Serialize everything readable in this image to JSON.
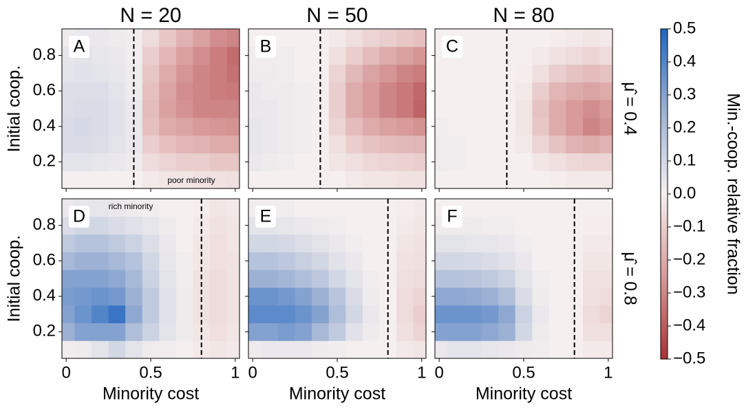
{
  "chart_data": [
    {
      "type": "heatmap",
      "title": "N = 20",
      "panel_label": "A",
      "ylabel": "Initial coop.",
      "annotation": "poor minority",
      "vline": 0.4,
      "x": [
        0,
        0.1,
        0.2,
        0.3,
        0.4,
        0.5,
        0.6,
        0.7,
        0.8,
        0.9,
        1
      ],
      "y": [
        0.1,
        0.2,
        0.3,
        0.4,
        0.5,
        0.6,
        0.7,
        0.8,
        0.9
      ],
      "xlim": [
        -0.025,
        1.025
      ],
      "ylim": [
        0.05,
        0.95
      ],
      "xticks": [
        0,
        0.5,
        1
      ],
      "yticks": [
        0.2,
        0.4,
        0.6,
        0.8
      ],
      "z": [
        [
          0,
          0,
          0,
          0,
          0,
          -0.02,
          -0.03,
          -0.03,
          -0.04,
          -0.04,
          -0.05
        ],
        [
          0.05,
          0.05,
          0.04,
          0.03,
          0.02,
          -0.06,
          -0.08,
          -0.1,
          -0.1,
          -0.12,
          -0.12
        ],
        [
          0.08,
          0.08,
          0.07,
          0.05,
          0.03,
          -0.1,
          -0.14,
          -0.17,
          -0.18,
          -0.2,
          -0.2
        ],
        [
          0.08,
          0.09,
          0.08,
          0.06,
          0.03,
          -0.14,
          -0.2,
          -0.22,
          -0.25,
          -0.26,
          -0.27
        ],
        [
          0.07,
          0.08,
          0.08,
          0.06,
          0.03,
          -0.15,
          -0.23,
          -0.27,
          -0.3,
          -0.3,
          -0.3
        ],
        [
          0.07,
          0.07,
          0.07,
          0.05,
          0.02,
          -0.14,
          -0.22,
          -0.28,
          -0.3,
          -0.32,
          -0.33
        ],
        [
          0.05,
          0.06,
          0.05,
          0.04,
          0.02,
          -0.12,
          -0.2,
          -0.26,
          -0.3,
          -0.32,
          -0.35
        ],
        [
          0.04,
          0.05,
          0.04,
          0.03,
          0.01,
          -0.1,
          -0.17,
          -0.23,
          -0.28,
          -0.32,
          -0.36
        ],
        [
          0.02,
          0.03,
          0.03,
          0.02,
          0.01,
          -0.06,
          -0.12,
          -0.18,
          -0.23,
          -0.28,
          -0.3
        ]
      ]
    },
    {
      "type": "heatmap",
      "title": "N = 50",
      "panel_label": "B",
      "vline": 0.4,
      "x": [
        0,
        0.1,
        0.2,
        0.3,
        0.4,
        0.5,
        0.6,
        0.7,
        0.8,
        0.9,
        1
      ],
      "y": [
        0.1,
        0.2,
        0.3,
        0.4,
        0.5,
        0.6,
        0.7,
        0.8,
        0.9
      ],
      "xlim": [
        -0.025,
        1.025
      ],
      "ylim": [
        0.05,
        0.95
      ],
      "xticks": [
        0,
        0.5,
        1
      ],
      "yticks": [
        0.2,
        0.4,
        0.6,
        0.8
      ],
      "z": [
        [
          0,
          0,
          0,
          0,
          0,
          0,
          -0.02,
          -0.03,
          -0.03,
          -0.04,
          -0.04
        ],
        [
          0.03,
          0.02,
          0.01,
          0,
          0,
          -0.03,
          -0.05,
          -0.07,
          -0.08,
          -0.09,
          -0.1
        ],
        [
          0.04,
          0.03,
          0.02,
          0.01,
          0,
          -0.05,
          -0.1,
          -0.13,
          -0.15,
          -0.16,
          -0.17
        ],
        [
          0.04,
          0.03,
          0.02,
          0.01,
          0,
          -0.08,
          -0.15,
          -0.2,
          -0.23,
          -0.25,
          -0.27
        ],
        [
          0.03,
          0.03,
          0.02,
          0.01,
          0,
          -0.1,
          -0.2,
          -0.25,
          -0.3,
          -0.33,
          -0.38
        ],
        [
          0.03,
          0.02,
          0.02,
          0.01,
          0,
          -0.1,
          -0.2,
          -0.25,
          -0.3,
          -0.33,
          -0.37
        ],
        [
          0.02,
          0.02,
          0.01,
          0,
          0,
          -0.08,
          -0.16,
          -0.22,
          -0.26,
          -0.3,
          -0.32
        ],
        [
          0.01,
          0.01,
          0.01,
          0,
          0,
          -0.05,
          -0.1,
          -0.15,
          -0.2,
          -0.23,
          -0.26
        ],
        [
          0,
          0,
          0,
          0,
          0,
          -0.02,
          -0.05,
          -0.08,
          -0.1,
          -0.12,
          -0.14
        ]
      ]
    },
    {
      "type": "heatmap",
      "title": "N = 80",
      "panel_label": "C",
      "row_label": "μ̂ = 0.4",
      "vline": 0.4,
      "x": [
        0,
        0.1,
        0.2,
        0.3,
        0.4,
        0.5,
        0.6,
        0.7,
        0.8,
        0.9,
        1
      ],
      "y": [
        0.1,
        0.2,
        0.3,
        0.4,
        0.5,
        0.6,
        0.7,
        0.8,
        0.9
      ],
      "xlim": [
        -0.025,
        1.025
      ],
      "ylim": [
        0.05,
        0.95
      ],
      "xticks": [
        0,
        0.5,
        1
      ],
      "yticks": [
        0.2,
        0.4,
        0.6,
        0.8
      ],
      "z": [
        [
          0,
          0,
          0,
          0,
          0,
          0,
          0,
          -0.01,
          -0.02,
          -0.02,
          -0.02
        ],
        [
          0.02,
          0.01,
          0,
          0,
          0,
          0,
          -0.03,
          -0.05,
          -0.07,
          -0.08,
          -0.08
        ],
        [
          0.02,
          0.01,
          0,
          0,
          0,
          -0.02,
          -0.08,
          -0.13,
          -0.18,
          -0.2,
          -0.18
        ],
        [
          0.01,
          0,
          0,
          0,
          0,
          -0.03,
          -0.12,
          -0.2,
          -0.25,
          -0.3,
          -0.27
        ],
        [
          0,
          0,
          0,
          0,
          0,
          -0.03,
          -0.13,
          -0.2,
          -0.25,
          -0.28,
          -0.25
        ],
        [
          0,
          0,
          0,
          0,
          0,
          -0.02,
          -0.1,
          -0.17,
          -0.2,
          -0.22,
          -0.2
        ],
        [
          0,
          0,
          0,
          0,
          0,
          -0.01,
          -0.05,
          -0.1,
          -0.13,
          -0.15,
          -0.13
        ],
        [
          0,
          0,
          0,
          0,
          0,
          0,
          -0.02,
          -0.04,
          -0.06,
          -0.08,
          -0.06
        ],
        [
          0,
          0,
          0,
          0,
          0,
          0,
          0,
          -0.01,
          -0.02,
          -0.03,
          -0.02
        ]
      ]
    },
    {
      "type": "heatmap",
      "panel_label": "D",
      "ylabel": "Initial coop.",
      "xlabel": "Minority cost",
      "annotation": "rich minority",
      "vline": 0.8,
      "x": [
        0,
        0.1,
        0.2,
        0.3,
        0.4,
        0.5,
        0.6,
        0.7,
        0.8,
        0.9,
        1
      ],
      "y": [
        0.1,
        0.2,
        0.3,
        0.4,
        0.5,
        0.6,
        0.7,
        0.8,
        0.9
      ],
      "xlim": [
        -0.025,
        1.025
      ],
      "ylim": [
        0.05,
        0.95
      ],
      "xticks": [
        0,
        0.5,
        1
      ],
      "yticks": [
        0.2,
        0.4,
        0.6,
        0.8
      ],
      "z": [
        [
          0.01,
          0.02,
          0.05,
          0.1,
          0.05,
          0.02,
          0.01,
          0,
          -0.02,
          -0.03,
          -0.02
        ],
        [
          0.25,
          0.3,
          0.3,
          0.3,
          0.2,
          0.12,
          0.05,
          0.02,
          -0.03,
          -0.05,
          -0.03
        ],
        [
          0.3,
          0.35,
          0.4,
          0.45,
          0.28,
          0.15,
          0.06,
          0.02,
          -0.04,
          -0.06,
          -0.04
        ],
        [
          0.32,
          0.33,
          0.35,
          0.33,
          0.25,
          0.15,
          0.06,
          0.02,
          -0.04,
          -0.06,
          -0.04
        ],
        [
          0.3,
          0.3,
          0.3,
          0.28,
          0.22,
          0.12,
          0.05,
          0.01,
          -0.04,
          -0.06,
          -0.04
        ],
        [
          0.22,
          0.25,
          0.25,
          0.22,
          0.18,
          0.1,
          0.04,
          0.01,
          -0.03,
          -0.05,
          -0.04
        ],
        [
          0.15,
          0.18,
          0.18,
          0.15,
          0.12,
          0.07,
          0.03,
          0,
          -0.03,
          -0.05,
          -0.03
        ],
        [
          0.08,
          0.1,
          0.1,
          0.08,
          0.06,
          0.04,
          0.02,
          0,
          -0.02,
          -0.04,
          -0.03
        ],
        [
          0.03,
          0.04,
          0.04,
          0.03,
          0.02,
          0.01,
          0,
          0,
          -0.01,
          -0.03,
          -0.02
        ]
      ]
    },
    {
      "type": "heatmap",
      "panel_label": "E",
      "xlabel": "Minority cost",
      "vline": 0.8,
      "x": [
        0,
        0.1,
        0.2,
        0.3,
        0.4,
        0.5,
        0.6,
        0.7,
        0.8,
        0.9,
        1
      ],
      "y": [
        0.1,
        0.2,
        0.3,
        0.4,
        0.5,
        0.6,
        0.7,
        0.8,
        0.9
      ],
      "xlim": [
        -0.025,
        1.025
      ],
      "ylim": [
        0.05,
        0.95
      ],
      "xticks": [
        0,
        0.5,
        1
      ],
      "yticks": [
        0.2,
        0.4,
        0.6,
        0.8
      ],
      "z": [
        [
          0.02,
          0.03,
          0.03,
          0.03,
          0.02,
          0.01,
          0,
          0,
          0,
          -0.02,
          -0.03
        ],
        [
          0.3,
          0.3,
          0.32,
          0.3,
          0.22,
          0.15,
          0.06,
          0.02,
          0,
          -0.05,
          -0.08
        ],
        [
          0.38,
          0.38,
          0.38,
          0.35,
          0.3,
          0.2,
          0.1,
          0.03,
          0,
          -0.06,
          -0.1
        ],
        [
          0.35,
          0.35,
          0.33,
          0.3,
          0.25,
          0.17,
          0.08,
          0.02,
          0,
          -0.06,
          -0.08
        ],
        [
          0.25,
          0.25,
          0.23,
          0.2,
          0.16,
          0.1,
          0.05,
          0.01,
          0,
          -0.05,
          -0.06
        ],
        [
          0.18,
          0.18,
          0.16,
          0.13,
          0.1,
          0.06,
          0.03,
          0,
          0,
          -0.04,
          -0.05
        ],
        [
          0.1,
          0.1,
          0.09,
          0.07,
          0.05,
          0.03,
          0.01,
          0,
          0,
          -0.03,
          -0.04
        ],
        [
          0.05,
          0.05,
          0.04,
          0.03,
          0.02,
          0.01,
          0,
          0,
          0,
          -0.02,
          -0.03
        ],
        [
          0.01,
          0.01,
          0.01,
          0,
          0,
          0,
          0,
          0,
          0,
          -0.01,
          -0.02
        ]
      ]
    },
    {
      "type": "heatmap",
      "panel_label": "F",
      "xlabel": "Minority cost",
      "row_label": "μ̂ = 0.8",
      "vline": 0.8,
      "x": [
        0,
        0.1,
        0.2,
        0.3,
        0.4,
        0.5,
        0.6,
        0.7,
        0.8,
        0.9,
        1
      ],
      "y": [
        0.1,
        0.2,
        0.3,
        0.4,
        0.5,
        0.6,
        0.7,
        0.8,
        0.9
      ],
      "xlim": [
        -0.025,
        1.025
      ],
      "ylim": [
        0.05,
        0.95
      ],
      "xticks": [
        0,
        0.5,
        1
      ],
      "yticks": [
        0.2,
        0.4,
        0.6,
        0.8
      ],
      "z": [
        [
          0.03,
          0.05,
          0.05,
          0.04,
          0.03,
          0.02,
          0.01,
          0,
          0,
          -0.02,
          -0.02
        ],
        [
          0.3,
          0.3,
          0.3,
          0.28,
          0.25,
          0.1,
          0.02,
          0,
          0,
          -0.05,
          -0.05
        ],
        [
          0.35,
          0.35,
          0.35,
          0.33,
          0.28,
          0.12,
          0.03,
          0,
          0,
          -0.06,
          -0.08
        ],
        [
          0.28,
          0.28,
          0.27,
          0.25,
          0.2,
          0.08,
          0.02,
          0,
          0,
          -0.05,
          -0.06
        ],
        [
          0.18,
          0.18,
          0.17,
          0.15,
          0.12,
          0.05,
          0.01,
          0,
          0,
          -0.04,
          -0.04
        ],
        [
          0.1,
          0.1,
          0.09,
          0.08,
          0.06,
          0.03,
          0,
          0,
          0,
          -0.03,
          -0.03
        ],
        [
          0.05,
          0.05,
          0.04,
          0.04,
          0.03,
          0.01,
          0,
          0,
          0,
          -0.02,
          -0.02
        ],
        [
          0.02,
          0.02,
          0.02,
          0.01,
          0.01,
          0,
          0,
          0,
          0,
          -0.01,
          -0.01
        ],
        [
          0,
          0,
          0,
          0,
          0,
          0,
          0,
          0,
          0,
          0,
          0
        ]
      ]
    }
  ],
  "colorbar": {
    "label": "Min.-coop. relative fraction",
    "lim": [
      -0.5,
      0.5
    ],
    "cmap": [
      "#a83236",
      "#d89a9a",
      "#f5f0ef",
      "#9db1d4",
      "#2066c0"
    ],
    "ticks": [
      {
        "value": -0.5,
        "label": "−0.5"
      },
      {
        "value": -0.4,
        "label": "−0.4"
      },
      {
        "value": -0.3,
        "label": "−0.3"
      },
      {
        "value": -0.2,
        "label": "−0.2"
      },
      {
        "value": -0.1,
        "label": "−0.1"
      },
      {
        "value": 0,
        "label": "0.0"
      },
      0.1,
      0.2,
      0.3,
      0.4,
      0.5
    ]
  }
}
